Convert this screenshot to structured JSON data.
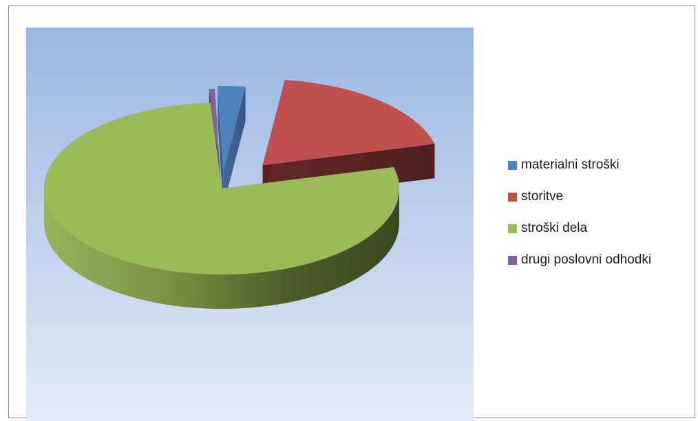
{
  "chart_data": {
    "type": "pie",
    "categories": [
      "materialni stroški",
      "storitve",
      "stroški dela",
      "drugi poslovni odhodki"
    ],
    "values": [
      2.5,
      19.0,
      78.0,
      0.5
    ],
    "colors": [
      "#4f81bd",
      "#c0504d",
      "#9bbb59",
      "#8064a2"
    ],
    "title": "",
    "legend_position": "right",
    "style": "3d-exploded"
  }
}
